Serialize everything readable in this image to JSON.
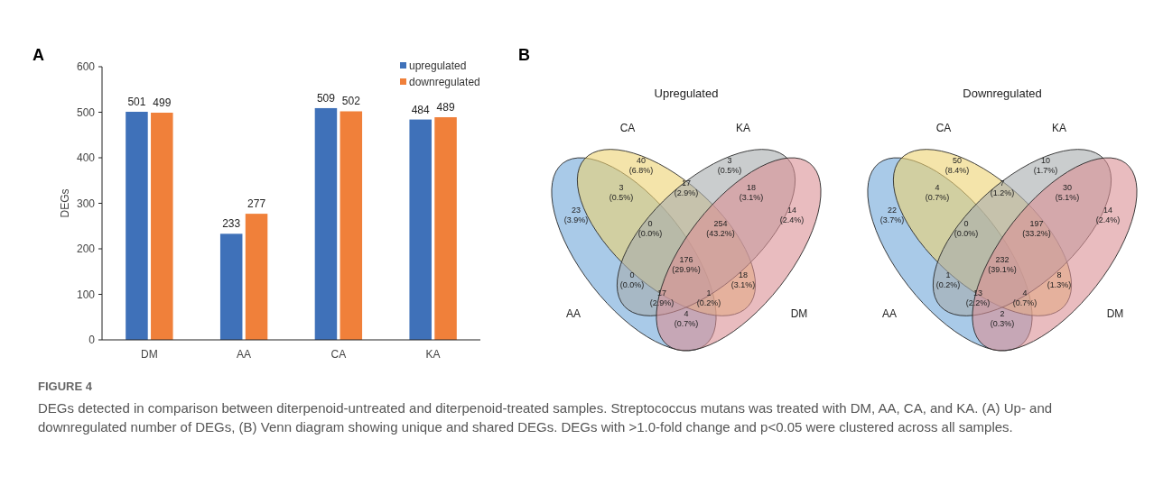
{
  "chart_data": [
    {
      "type": "bar",
      "categories": [
        "DM",
        "AA",
        "CA",
        "KA"
      ],
      "ylabel": "DEGs",
      "ylim": [
        0,
        600
      ],
      "yticks": [
        0,
        100,
        200,
        300,
        400,
        500,
        600
      ],
      "legend": "top right",
      "data_labels": true,
      "series": [
        {
          "name": "upregulated",
          "color": "#3f71b9",
          "values": [
            501,
            233,
            509,
            484
          ]
        },
        {
          "name": "downregulated",
          "color": "#f0803a",
          "values": [
            499,
            277,
            502,
            489
          ]
        }
      ],
      "annotations": [
        "A",
        "B",
        "FIGURE 4",
        "DEGs detected in comparison between diterpenoid-untreated and diterpenoid-treated samples. Streptococcus mutans was treated with DM, AA, CA, and KA. (A) Up- and downregulated number of DEGs, (B) Venn diagram showing unique and shared DEGs. DEGs with >1.0-fold change and p<0.05 were clustered across all samples."
      ]
    },
    {
      "type": "other",
      "title": "Upregulated",
      "annotations": [
        "AA",
        "CA",
        "KA",
        "DM"
      ],
      "data_labels": true,
      "values": [
        23,
        40,
        3,
        14,
        3,
        17,
        18,
        0,
        254,
        176,
        0,
        18,
        17,
        1,
        4
      ],
      "categories": [
        "(3.9%)",
        "(6.8%)",
        "(0.5%)",
        "(2.4%)",
        "(0.5%)",
        "(2.9%)",
        "(3.1%)",
        "(0.0%)",
        "(43.2%)",
        "(29.9%)",
        "(0.0%)",
        "(3.1%)",
        "(2.9%)",
        "(0.2%)",
        "(0.7%)"
      ]
    },
    {
      "type": "other",
      "title": "Downregulated",
      "annotations": [
        "AA",
        "CA",
        "KA",
        "DM"
      ],
      "data_labels": true,
      "values": [
        22,
        50,
        10,
        14,
        4,
        7,
        30,
        0,
        197,
        232,
        1,
        8,
        13,
        4,
        2
      ],
      "categories": [
        "(3.7%)",
        "(8.4%)",
        "(1.7%)",
        "(2.4%)",
        "(0.7%)",
        "(1.2%)",
        "(5.1%)",
        "(0.0%)",
        "(33.2%)",
        "(39.1%)",
        "(0.2%)",
        "(1.3%)",
        "(2.2%)",
        "(0.7%)",
        "(0.3%)"
      ]
    }
  ]
}
